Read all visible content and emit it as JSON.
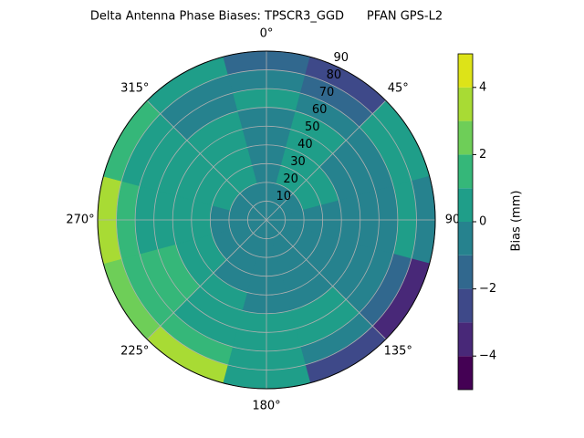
{
  "chart_data": {
    "type": "polar_contour",
    "title": "Delta Antenna Phase Biases: TPSCR3_GGD      PFAN GPS-L2",
    "colorbar_label": "Bias (mm)",
    "azimuth": [
      0,
      30,
      60,
      90,
      120,
      150,
      180,
      210,
      240,
      270,
      300,
      330
    ],
    "radius": [
      5,
      15,
      25,
      35,
      45,
      55,
      65,
      75,
      85
    ],
    "values": [
      [
        -0.5,
        -0.5,
        -0.5,
        -0.5,
        -0.5,
        -0.5,
        0.5,
        -0.5,
        -1.5
      ],
      [
        -0.5,
        -0.5,
        0.5,
        0.5,
        0.5,
        0.5,
        -0.5,
        -1.5,
        -2.5
      ],
      [
        -0.5,
        -0.5,
        0.5,
        0.5,
        -0.5,
        -0.5,
        -0.5,
        0.5,
        0.5
      ],
      [
        -0.5,
        -0.5,
        -0.5,
        -0.5,
        -0.5,
        -0.5,
        -0.5,
        0.5,
        -0.5
      ],
      [
        -0.5,
        -0.5,
        -0.5,
        -0.5,
        -0.5,
        -0.5,
        -0.5,
        -1.5,
        -3.5
      ],
      [
        -0.5,
        -0.5,
        -0.5,
        -0.5,
        -0.5,
        0.5,
        0.5,
        -0.5,
        -2.5
      ],
      [
        -0.5,
        -0.5,
        -0.5,
        -0.5,
        -0.5,
        0.5,
        0.5,
        0.5,
        0.5
      ],
      [
        -0.5,
        -0.5,
        -0.5,
        -0.5,
        0.5,
        0.5,
        0.5,
        1.5,
        3.5
      ],
      [
        -0.5,
        -0.5,
        -0.5,
        0.5,
        0.5,
        1.5,
        1.5,
        1.5,
        2.5
      ],
      [
        -0.5,
        -0.5,
        -0.5,
        0.5,
        0.5,
        0.5,
        0.5,
        1.5,
        3.5
      ],
      [
        -0.5,
        -0.5,
        0.5,
        0.5,
        0.5,
        0.5,
        0.5,
        0.5,
        1.5
      ],
      [
        -0.5,
        -0.5,
        0.5,
        0.5,
        0.5,
        0.5,
        -0.5,
        -0.5,
        0.5
      ]
    ],
    "rlim": [
      0,
      90
    ],
    "rticks": [
      10,
      20,
      30,
      40,
      50,
      60,
      70,
      80,
      90
    ],
    "thetaticks": [
      {
        "value": 0,
        "label": "0°"
      },
      {
        "value": 45,
        "label": "45°"
      },
      {
        "value": 90,
        "label": "90"
      },
      {
        "value": 135,
        "label": "135°"
      },
      {
        "value": 180,
        "label": "180°"
      },
      {
        "value": 225,
        "label": "225°"
      },
      {
        "value": 270,
        "label": "270°"
      },
      {
        "value": 315,
        "label": "315°"
      }
    ],
    "levels": [
      -5,
      -4,
      -3,
      -2,
      -1,
      0,
      1,
      2,
      3,
      4,
      5
    ],
    "colors": [
      "#440154",
      "#482878",
      "#3e4989",
      "#31688e",
      "#26828e",
      "#1f9e89",
      "#35b779",
      "#6ece58",
      "#a8db34",
      "#dde318"
    ],
    "clim": [
      -5,
      5
    ],
    "cticks": [
      {
        "value": -4,
        "label": "−4"
      },
      {
        "value": -2,
        "label": "−2"
      },
      0,
      2,
      4
    ],
    "grid": true
  }
}
